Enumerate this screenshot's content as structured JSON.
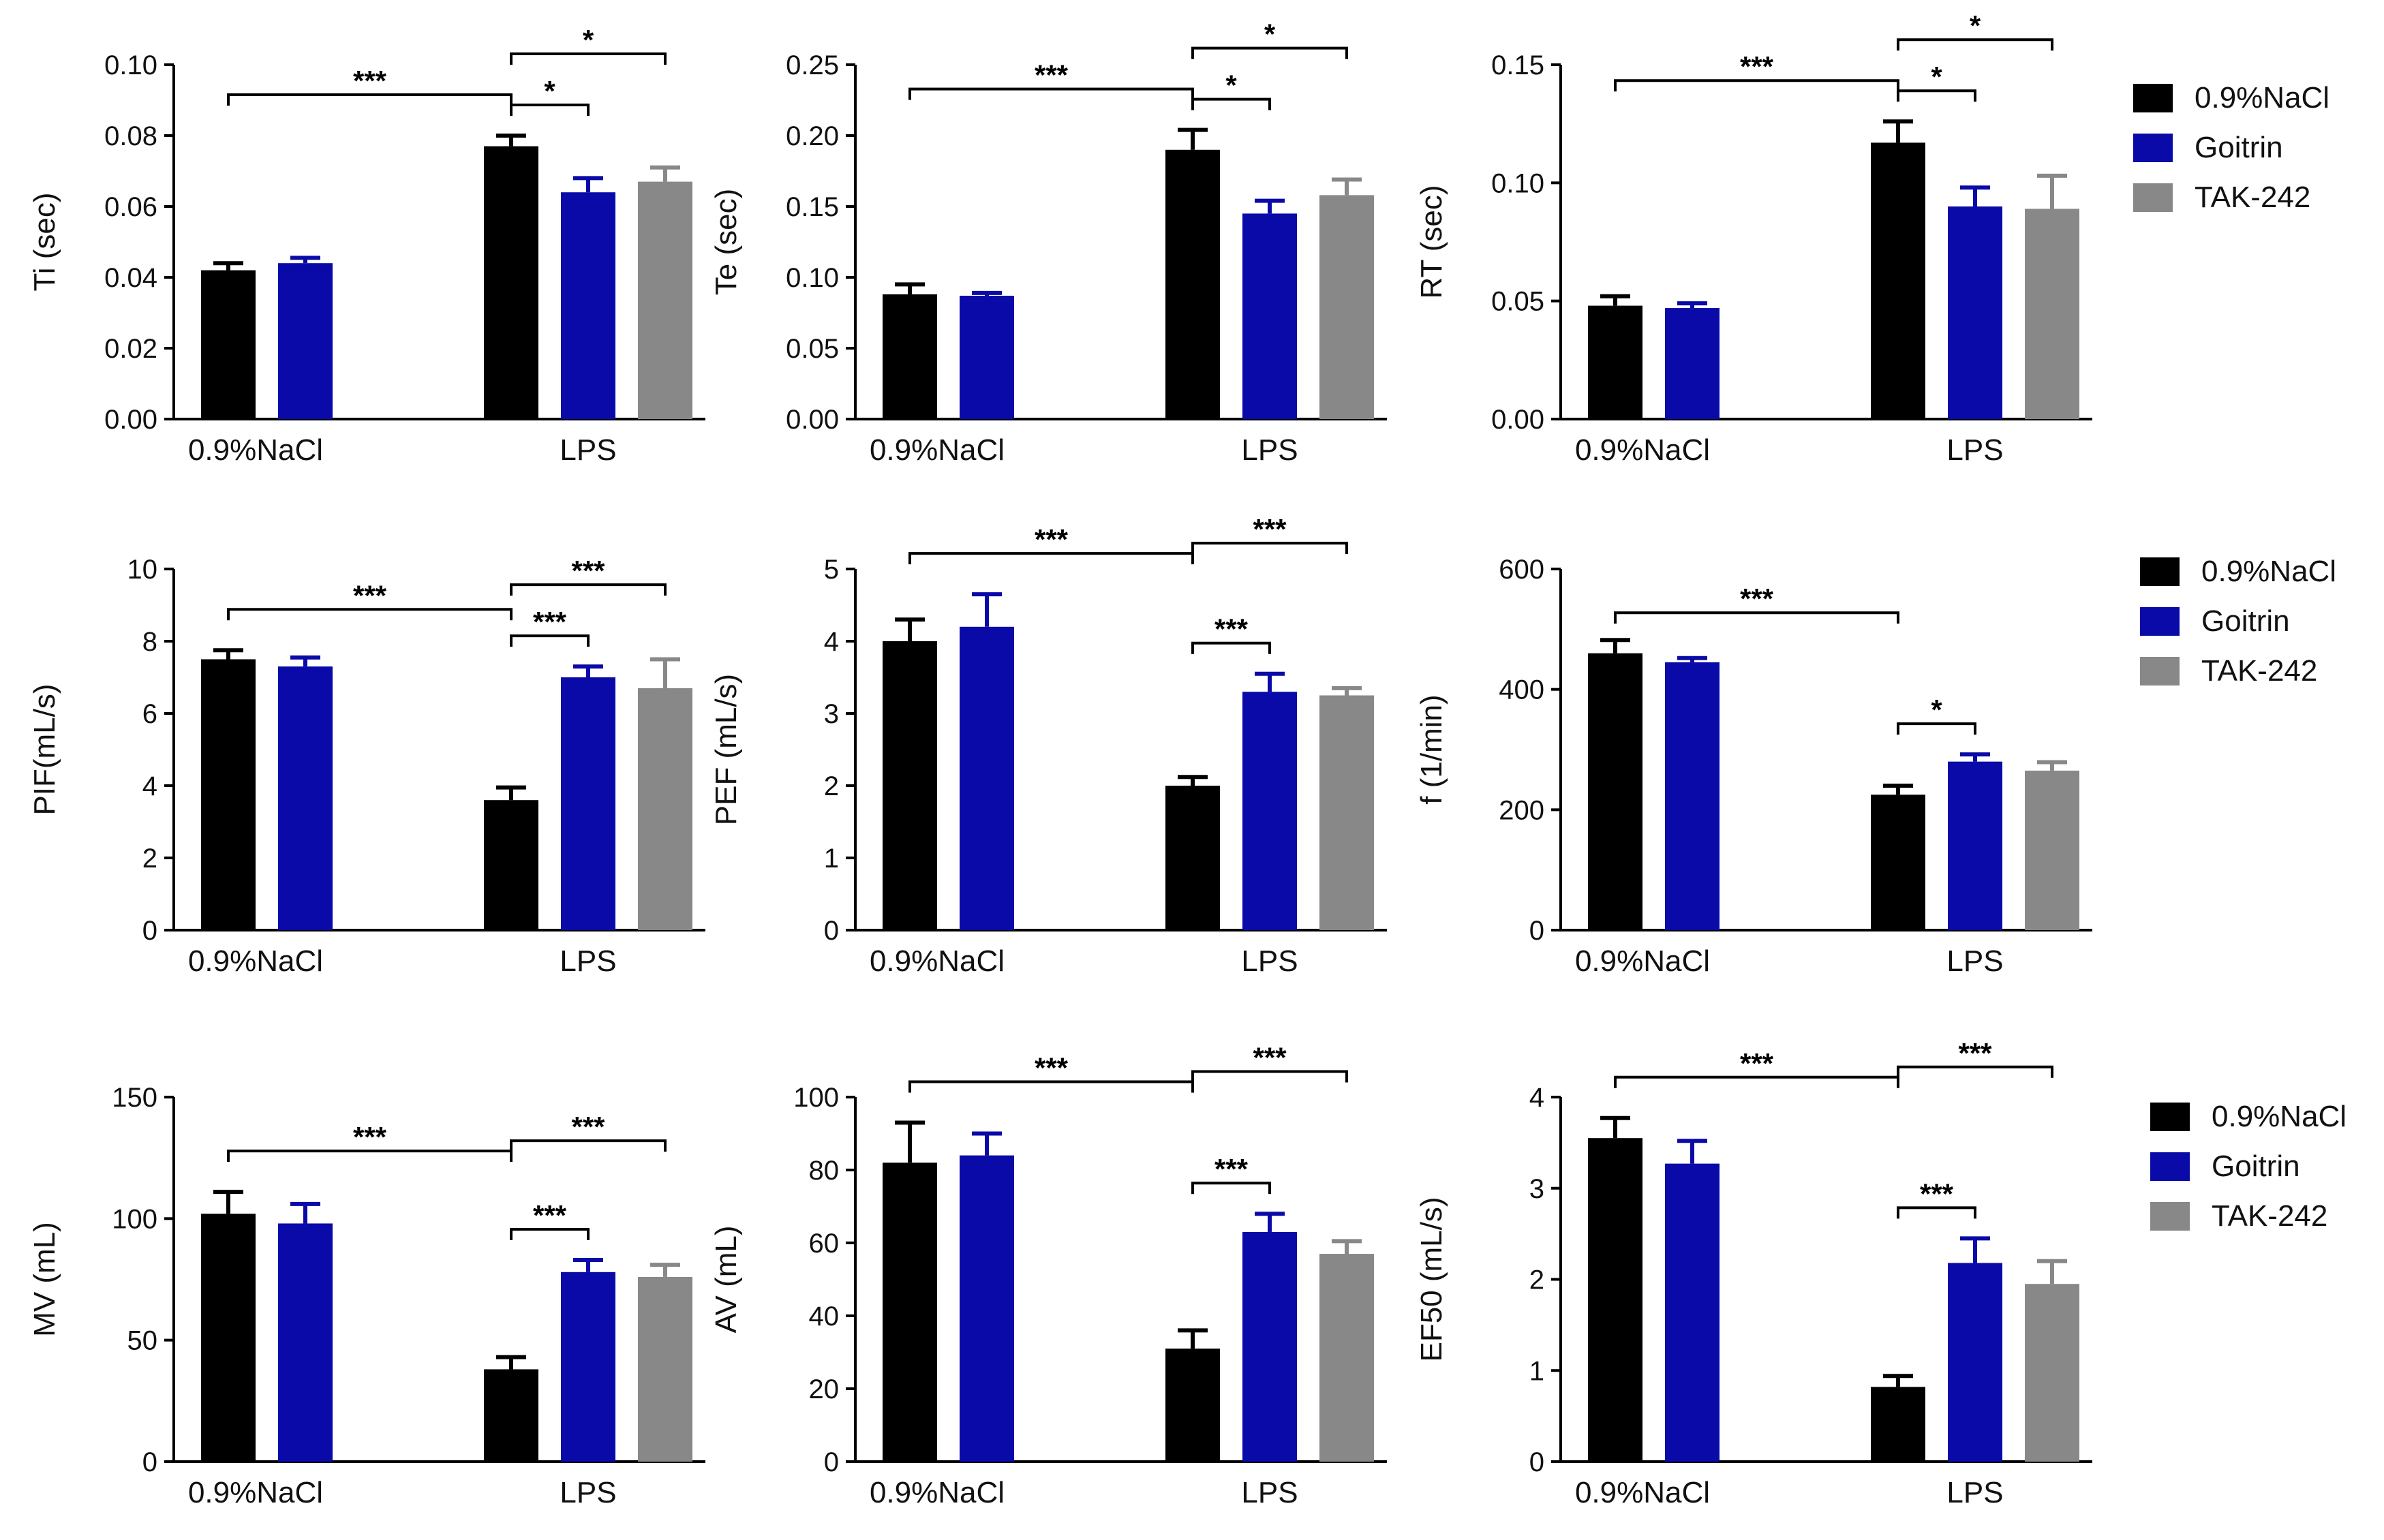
{
  "groups": [
    "0.9%NaCl",
    "LPS"
  ],
  "series_names": [
    "0.9%NaCl",
    "Goitrin",
    "TAK-242"
  ],
  "colors": {
    "0.9%NaCl": "#000000",
    "Goitrin": "#0a0aa8",
    "TAK-242": "#888888"
  },
  "legends": [
    {
      "items": [
        "0.9%NaCl",
        "Goitrin",
        "TAK-242"
      ]
    },
    {
      "items": [
        "0.9%NaCl",
        "Goitrin",
        "TAK-242"
      ]
    },
    {
      "items": [
        "0.9%NaCl",
        "Goitrin",
        "TAK-242"
      ]
    }
  ],
  "chart_data": [
    {
      "type": "bar",
      "ylabel": "Ti (sec)",
      "ylim": [
        0,
        0.1
      ],
      "yticks": [
        "0.00",
        "0.02",
        "0.04",
        "0.06",
        "0.08",
        "0.10"
      ],
      "categories": [
        "0.9%NaCl",
        "LPS"
      ],
      "series": [
        {
          "name": "0.9%NaCl",
          "values": [
            0.042,
            0.077
          ],
          "errors": [
            0.002,
            0.003
          ]
        },
        {
          "name": "Goitrin",
          "values": [
            0.044,
            0.064
          ],
          "errors": [
            0.0015,
            0.004
          ]
        },
        {
          "name": "TAK-242",
          "values": [
            null,
            0.067
          ],
          "errors": [
            null,
            0.004
          ]
        }
      ],
      "annotations": [
        {
          "from": [
            0,
            0
          ],
          "to": [
            1,
            0
          ],
          "label": "***"
        },
        {
          "from": [
            1,
            0
          ],
          "to": [
            1,
            1
          ],
          "label": "*"
        },
        {
          "from": [
            1,
            0
          ],
          "to": [
            1,
            2
          ],
          "label": "*"
        }
      ]
    },
    {
      "type": "bar",
      "ylabel": "Te (sec)",
      "ylim": [
        0,
        0.25
      ],
      "yticks": [
        "0.00",
        "0.05",
        "0.10",
        "0.15",
        "0.20",
        "0.25"
      ],
      "categories": [
        "0.9%NaCl",
        "LPS"
      ],
      "series": [
        {
          "name": "0.9%NaCl",
          "values": [
            0.088,
            0.19
          ],
          "errors": [
            0.007,
            0.014
          ]
        },
        {
          "name": "Goitrin",
          "values": [
            0.087,
            0.145
          ],
          "errors": [
            0.002,
            0.009
          ]
        },
        {
          "name": "TAK-242",
          "values": [
            null,
            0.158
          ],
          "errors": [
            null,
            0.011
          ]
        }
      ],
      "annotations": [
        {
          "from": [
            0,
            0
          ],
          "to": [
            1,
            0
          ],
          "label": "***"
        },
        {
          "from": [
            1,
            0
          ],
          "to": [
            1,
            1
          ],
          "label": "*"
        },
        {
          "from": [
            1,
            0
          ],
          "to": [
            1,
            2
          ],
          "label": "*"
        }
      ]
    },
    {
      "type": "bar",
      "ylabel": "RT (sec)",
      "ylim": [
        0,
        0.15
      ],
      "yticks": [
        "0.00",
        "0.05",
        "0.10",
        "0.15"
      ],
      "categories": [
        "0.9%NaCl",
        "LPS"
      ],
      "series": [
        {
          "name": "0.9%NaCl",
          "values": [
            0.048,
            0.117
          ],
          "errors": [
            0.004,
            0.009
          ]
        },
        {
          "name": "Goitrin",
          "values": [
            0.047,
            0.09
          ],
          "errors": [
            0.002,
            0.008
          ]
        },
        {
          "name": "TAK-242",
          "values": [
            null,
            0.089
          ],
          "errors": [
            null,
            0.014
          ]
        }
      ],
      "annotations": [
        {
          "from": [
            0,
            0
          ],
          "to": [
            1,
            0
          ],
          "label": "***"
        },
        {
          "from": [
            1,
            0
          ],
          "to": [
            1,
            1
          ],
          "label": "*"
        },
        {
          "from": [
            1,
            0
          ],
          "to": [
            1,
            2
          ],
          "label": "*"
        }
      ]
    },
    {
      "type": "bar",
      "ylabel": "PIF(mL/s)",
      "ylim": [
        0,
        10
      ],
      "yticks": [
        "0",
        "2",
        "4",
        "6",
        "8",
        "10"
      ],
      "categories": [
        "0.9%NaCl",
        "LPS"
      ],
      "series": [
        {
          "name": "0.9%NaCl",
          "values": [
            7.5,
            3.6
          ],
          "errors": [
            0.25,
            0.35
          ]
        },
        {
          "name": "Goitrin",
          "values": [
            7.3,
            7.0
          ],
          "errors": [
            0.25,
            0.3
          ]
        },
        {
          "name": "TAK-242",
          "values": [
            null,
            6.7
          ],
          "errors": [
            null,
            0.8
          ]
        }
      ],
      "annotations": [
        {
          "from": [
            0,
            0
          ],
          "to": [
            1,
            0
          ],
          "label": "***"
        },
        {
          "from": [
            1,
            0
          ],
          "to": [
            1,
            1
          ],
          "label": "***"
        },
        {
          "from": [
            1,
            0
          ],
          "to": [
            1,
            2
          ],
          "label": "***"
        }
      ]
    },
    {
      "type": "bar",
      "ylabel": "PEF (mL/s)",
      "ylim": [
        0,
        5
      ],
      "yticks": [
        "0",
        "1",
        "2",
        "3",
        "4",
        "5"
      ],
      "categories": [
        "0.9%NaCl",
        "LPS"
      ],
      "series": [
        {
          "name": "0.9%NaCl",
          "values": [
            4.0,
            2.0
          ],
          "errors": [
            0.3,
            0.12
          ]
        },
        {
          "name": "Goitrin",
          "values": [
            4.2,
            3.3
          ],
          "errors": [
            0.45,
            0.25
          ]
        },
        {
          "name": "TAK-242",
          "values": [
            null,
            3.25
          ],
          "errors": [
            null,
            0.1
          ]
        }
      ],
      "annotations": [
        {
          "from": [
            0,
            0
          ],
          "to": [
            1,
            0
          ],
          "label": "***"
        },
        {
          "from": [
            1,
            0
          ],
          "to": [
            1,
            1
          ],
          "label": "***"
        },
        {
          "from": [
            1,
            0
          ],
          "to": [
            1,
            2
          ],
          "label": "***"
        }
      ]
    },
    {
      "type": "bar",
      "ylabel": "f (1/min)",
      "ylim": [
        0,
        600
      ],
      "yticks": [
        "0",
        "200",
        "400",
        "600"
      ],
      "categories": [
        "0.9%NaCl",
        "LPS"
      ],
      "series": [
        {
          "name": "0.9%NaCl",
          "values": [
            460,
            225
          ],
          "errors": [
            22,
            15
          ]
        },
        {
          "name": "Goitrin",
          "values": [
            445,
            280
          ],
          "errors": [
            7,
            12
          ]
        },
        {
          "name": "TAK-242",
          "values": [
            null,
            265
          ],
          "errors": [
            null,
            14
          ]
        }
      ],
      "annotations": [
        {
          "from": [
            0,
            0
          ],
          "to": [
            1,
            0
          ],
          "label": "***"
        },
        {
          "from": [
            1,
            0
          ],
          "to": [
            1,
            1
          ],
          "label": "*"
        }
      ]
    },
    {
      "type": "bar",
      "ylabel": "MV (mL)",
      "ylim": [
        0,
        150
      ],
      "yticks": [
        "0",
        "50",
        "100",
        "150"
      ],
      "categories": [
        "0.9%NaCl",
        "LPS"
      ],
      "series": [
        {
          "name": "0.9%NaCl",
          "values": [
            102,
            38
          ],
          "errors": [
            9,
            5
          ]
        },
        {
          "name": "Goitrin",
          "values": [
            98,
            78
          ],
          "errors": [
            8,
            5
          ]
        },
        {
          "name": "TAK-242",
          "values": [
            null,
            76
          ],
          "errors": [
            null,
            5
          ]
        }
      ],
      "annotations": [
        {
          "from": [
            0,
            0
          ],
          "to": [
            1,
            0
          ],
          "label": "***"
        },
        {
          "from": [
            1,
            0
          ],
          "to": [
            1,
            1
          ],
          "label": "***"
        },
        {
          "from": [
            1,
            0
          ],
          "to": [
            1,
            2
          ],
          "label": "***"
        }
      ]
    },
    {
      "type": "bar",
      "ylabel": "AV (mL)",
      "ylim": [
        0,
        100
      ],
      "yticks": [
        "0",
        "20",
        "40",
        "60",
        "80",
        "100"
      ],
      "categories": [
        "0.9%NaCl",
        "LPS"
      ],
      "series": [
        {
          "name": "0.9%NaCl",
          "values": [
            82,
            31
          ],
          "errors": [
            11,
            5
          ]
        },
        {
          "name": "Goitrin",
          "values": [
            84,
            63
          ],
          "errors": [
            6,
            5
          ]
        },
        {
          "name": "TAK-242",
          "values": [
            null,
            57
          ],
          "errors": [
            null,
            3.5
          ]
        }
      ],
      "annotations": [
        {
          "from": [
            0,
            0
          ],
          "to": [
            1,
            0
          ],
          "label": "***"
        },
        {
          "from": [
            1,
            0
          ],
          "to": [
            1,
            1
          ],
          "label": "***"
        },
        {
          "from": [
            1,
            0
          ],
          "to": [
            1,
            2
          ],
          "label": "***"
        }
      ]
    },
    {
      "type": "bar",
      "ylabel": "EF50 (mL/s)",
      "ylim": [
        0,
        4
      ],
      "yticks": [
        "0",
        "1",
        "2",
        "3",
        "4"
      ],
      "categories": [
        "0.9%NaCl",
        "LPS"
      ],
      "series": [
        {
          "name": "0.9%NaCl",
          "values": [
            3.55,
            0.82
          ],
          "errors": [
            0.22,
            0.12
          ]
        },
        {
          "name": "Goitrin",
          "values": [
            3.27,
            2.18
          ],
          "errors": [
            0.25,
            0.27
          ]
        },
        {
          "name": "TAK-242",
          "values": [
            null,
            1.95
          ],
          "errors": [
            null,
            0.25
          ]
        }
      ],
      "annotations": [
        {
          "from": [
            0,
            0
          ],
          "to": [
            1,
            0
          ],
          "label": "***"
        },
        {
          "from": [
            1,
            0
          ],
          "to": [
            1,
            1
          ],
          "label": "***"
        },
        {
          "from": [
            1,
            0
          ],
          "to": [
            1,
            2
          ],
          "label": "***"
        }
      ]
    }
  ]
}
